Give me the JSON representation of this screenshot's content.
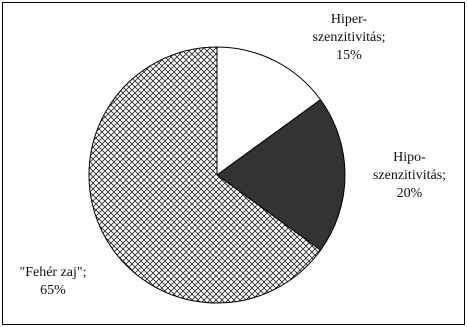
{
  "chart_data": {
    "type": "pie",
    "slices": [
      {
        "label_lines": [
          "Hiper-",
          "szenzitivitás;",
          "15%"
        ],
        "value": 15,
        "fill": "#ffffff",
        "pattern": "none"
      },
      {
        "label_lines": [
          "Hipo-",
          "szenzitivitás;",
          "20%"
        ],
        "value": 20,
        "fill": "#333333",
        "pattern": "none"
      },
      {
        "label_lines": [
          "\"Fehér zaj\";",
          "65%"
        ],
        "value": 65,
        "fill": "#ffffff",
        "pattern": "crosshatch"
      }
    ],
    "start": "12 o'clock",
    "direction": "clockwise",
    "legend": "none"
  }
}
